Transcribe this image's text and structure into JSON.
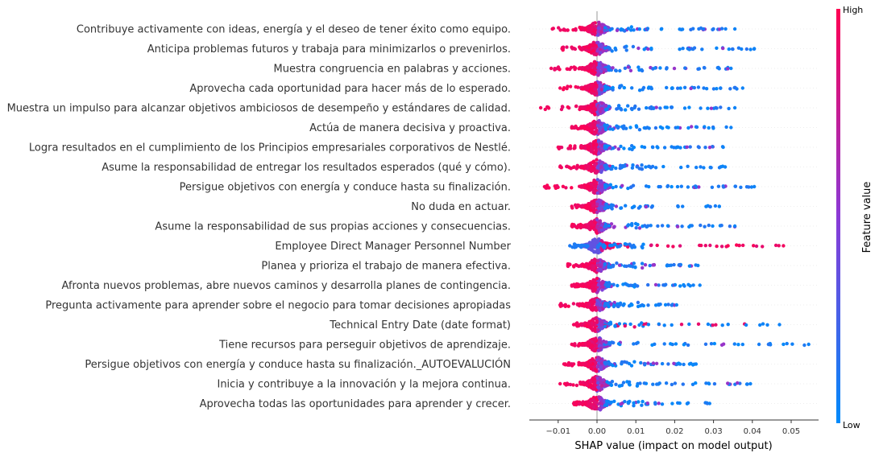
{
  "chart_data": {
    "type": "scatter",
    "subtype": "shap-beeswarm-summary",
    "xlabel": "SHAP value (impact on model output)",
    "xlim": [
      -0.018,
      0.057
    ],
    "x_ticks": [
      -0.01,
      0.0,
      0.01,
      0.02,
      0.03,
      0.04,
      0.05
    ],
    "x_tick_labels": [
      "−0.01",
      "0.00",
      "0.01",
      "0.02",
      "0.03",
      "0.04",
      "0.05"
    ],
    "colorbar": {
      "title": "Feature value",
      "high_label": "High",
      "low_label": "Low",
      "high_color": "#ff0052",
      "low_color": "#008bfb"
    },
    "features": [
      {
        "name": "Contribuye activamente con ideas, energía y el deseo de tener éxito como equipo.",
        "low_max": 0.0355,
        "high_min": -0.0115
      },
      {
        "name": "Anticipa problemas futuros y trabaja para minimizarlos o prevenirlos.",
        "low_max": 0.0405,
        "high_min": -0.009
      },
      {
        "name": "Muestra congruencia en palabras y acciones.",
        "low_max": 0.0345,
        "high_min": -0.0118
      },
      {
        "name": "Aprovecha cada oportunidad para hacer más de lo esperado.",
        "low_max": 0.0375,
        "high_min": -0.0095
      },
      {
        "name": "Muestra un impulso para alcanzar objetivos ambiciosos de desempeño y estándares de calidad.",
        "low_max": 0.0355,
        "high_min": -0.0145
      },
      {
        "name": "Actúa de manera decisiva y proactiva.",
        "low_max": 0.0345,
        "high_min": -0.0065
      },
      {
        "name": "Logra resultados en el cumplimiento de los Principios empresariales corporativos de Nestlé.",
        "low_max": 0.0325,
        "high_min": -0.01
      },
      {
        "name": "Asume la responsabilidad de entregar los resultados esperados (qué y cómo).",
        "low_max": 0.033,
        "high_min": -0.0095
      },
      {
        "name": "Persigue objetivos con energía y conduce hasta su finalización.",
        "low_max": 0.0405,
        "high_min": -0.0135
      },
      {
        "name": "No duda en actuar.",
        "low_max": 0.0315,
        "high_min": -0.0065
      },
      {
        "name": "Asume la responsabilidad de sus propias acciones y consecuencias.",
        "low_max": 0.0355,
        "high_min": -0.0065
      },
      {
        "name": "Employee Direct Manager Personnel Number",
        "low_max": 0.013,
        "high_min": -0.007,
        "high_max": 0.048,
        "inverted": true
      },
      {
        "name": "Planea y prioriza el trabajo de manera efectiva.",
        "low_max": 0.026,
        "high_min": -0.0075
      },
      {
        "name": "Afronta nuevos problemas, abre nuevos caminos y desarrolla planes de contingencia.",
        "low_max": 0.0265,
        "high_min": -0.0065
      },
      {
        "name": "Pregunta activamente para aprender sobre el negocio para tomar decisiones apropiadas",
        "low_max": 0.0205,
        "high_min": -0.0095
      },
      {
        "name": "Technical Entry Date (date format)",
        "low_max": 0.047,
        "high_min": -0.006,
        "mixed": true
      },
      {
        "name": "Tiene recursos para perseguir objetivos de aprendizaje.",
        "low_max": 0.0545,
        "high_min": -0.0065
      },
      {
        "name": "Persigue objetivos con energía y conduce hasta su finalización._AUTOEVALUCIÓN",
        "low_max": 0.0255,
        "high_min": -0.0085
      },
      {
        "name": "Inicia y contribuye a la innovación y la mejora continua.",
        "low_max": 0.0395,
        "high_min": -0.0095
      },
      {
        "name": "Aprovecha todas las oportunidades para aprender y crecer.",
        "low_max": 0.029,
        "high_min": -0.006
      }
    ]
  }
}
